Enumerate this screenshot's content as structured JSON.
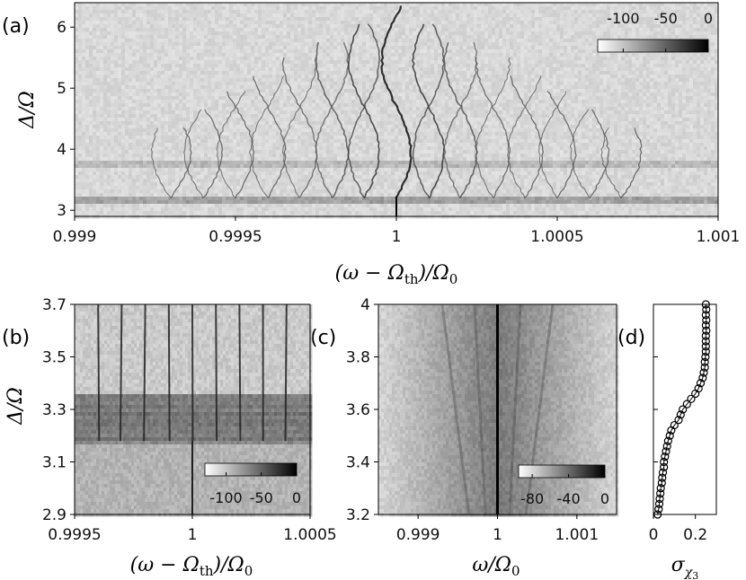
{
  "chart_data": [
    {
      "panel": "(a)",
      "type": "heatmap",
      "xlabel": "(ω − Ω_th)/Ω₀",
      "ylabel": "Δ/Ω",
      "xlim": [
        0.999,
        1.001
      ],
      "ylim": [
        2.9,
        6.4
      ],
      "xticks": [
        "0.999",
        "0.9995",
        "1",
        "1.0005",
        "1.001"
      ],
      "xtick_values": [
        0.999,
        0.9995,
        1.0,
        1.0005,
        1.001
      ],
      "yticks": [
        "3",
        "4",
        "5",
        "6"
      ],
      "ytick_values": [
        3,
        4,
        5,
        6
      ],
      "colorbar": {
        "ticks": [
          "-100",
          "-50",
          "0"
        ],
        "tick_values": [
          -100,
          -50,
          0
        ],
        "range": [
          -130,
          0
        ],
        "cmap": "gray_r"
      },
      "features": {
        "sideband_spacing": 0.0001,
        "sideband_orders": [
          -7,
          -6,
          -5,
          -4,
          -3,
          -2,
          -1,
          0,
          1,
          2,
          3,
          4,
          5,
          6,
          7
        ],
        "horizontal_bands": [
          3.22,
          3.78
        ]
      }
    },
    {
      "panel": "(b)",
      "type": "heatmap",
      "xlabel": "(ω − Ω_th)/Ω₀",
      "ylabel": "Δ/Ω",
      "xlim": [
        0.9995,
        1.0005
      ],
      "ylim": [
        2.9,
        3.7
      ],
      "xticks": [
        "0.9995",
        "1",
        "1.0005"
      ],
      "xtick_values": [
        0.9995,
        1.0,
        1.0005
      ],
      "yticks": [
        "2.9",
        "3.1",
        "3.3",
        "3.5",
        "3.7"
      ],
      "ytick_values": [
        2.9,
        3.1,
        3.3,
        3.5,
        3.7
      ],
      "colorbar": {
        "ticks": [
          "-100",
          "-50",
          "0"
        ],
        "tick_values": [
          -100,
          -50,
          0
        ],
        "range": [
          -130,
          0
        ],
        "cmap": "gray_r"
      },
      "features": {
        "dark_band": [
          3.18,
          3.36
        ]
      }
    },
    {
      "panel": "(c)",
      "type": "heatmap",
      "xlabel": "ω/Ω₀",
      "ylabel": "",
      "xlim": [
        0.9985,
        1.0015
      ],
      "ylim": [
        3.2,
        4.0
      ],
      "xticks": [
        "0.999",
        "1",
        "1.001"
      ],
      "xtick_values": [
        0.999,
        1.0,
        1.001
      ],
      "yticks": [
        "3.2",
        "3.4",
        "3.6",
        "3.8",
        "4"
      ],
      "ytick_values": [
        3.2,
        3.4,
        3.6,
        3.8,
        4.0
      ],
      "colorbar": {
        "ticks": [
          "-80",
          "-40",
          "0"
        ],
        "tick_values": [
          -80,
          -40,
          0
        ],
        "range": [
          -95,
          0
        ],
        "cmap": "gray_r"
      }
    },
    {
      "panel": "(d)",
      "type": "line",
      "xlabel": "σ_χ3",
      "ylabel": "",
      "xlim": [
        0,
        0.3
      ],
      "ylim": [
        3.2,
        4.0
      ],
      "xticks": [
        "0",
        "0.2"
      ],
      "xtick_values": [
        0,
        0.2
      ],
      "marker": "open-circle",
      "y": [
        3.2,
        3.22,
        3.24,
        3.26,
        3.28,
        3.3,
        3.32,
        3.34,
        3.36,
        3.38,
        3.4,
        3.42,
        3.44,
        3.46,
        3.48,
        3.5,
        3.52,
        3.54,
        3.56,
        3.58,
        3.6,
        3.62,
        3.64,
        3.66,
        3.68,
        3.7,
        3.72,
        3.74,
        3.76,
        3.78,
        3.8,
        3.82,
        3.84,
        3.86,
        3.88,
        3.9,
        3.92,
        3.94,
        3.96,
        3.98,
        4.0
      ],
      "x": [
        0.02,
        0.025,
        0.028,
        0.03,
        0.033,
        0.035,
        0.04,
        0.042,
        0.045,
        0.05,
        0.05,
        0.055,
        0.06,
        0.065,
        0.07,
        0.078,
        0.085,
        0.1,
        0.12,
        0.13,
        0.14,
        0.16,
        0.18,
        0.2,
        0.215,
        0.225,
        0.235,
        0.24,
        0.245,
        0.245,
        0.248,
        0.25,
        0.25,
        0.25,
        0.25,
        0.252,
        0.25,
        0.252,
        0.25,
        0.252,
        0.25
      ]
    }
  ]
}
